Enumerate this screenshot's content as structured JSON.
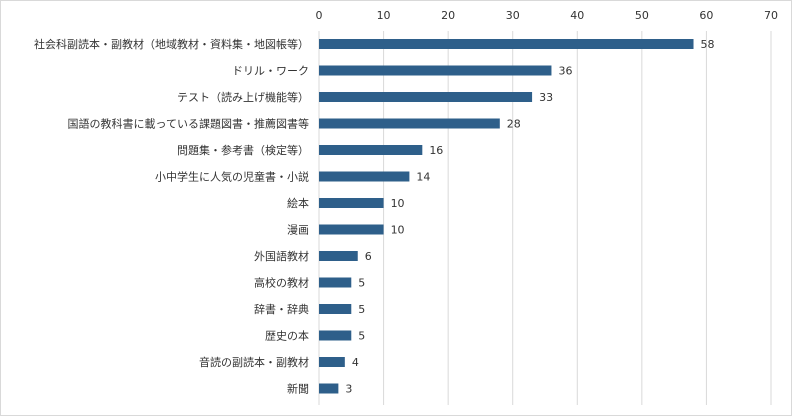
{
  "chart_data": {
    "type": "bar",
    "orientation": "horizontal",
    "title": "",
    "xlabel": "",
    "ylabel": "",
    "xlim": [
      0,
      70
    ],
    "x_ticks": [
      0,
      10,
      20,
      30,
      40,
      50,
      60,
      70
    ],
    "x_axis_position": "top",
    "grid": true,
    "legend": "none",
    "categories": [
      "社会科副読本・副教材（地域教材・資料集・地図帳等）",
      "ドリル・ワーク",
      "テスト（読み上げ機能等）",
      "国語の教科書に載っている課題図書・推薦図書等",
      "問題集・参考書（検定等）",
      "小中学生に人気の児童書・小説",
      "絵本",
      "漫画",
      "外国語教材",
      "高校の教材",
      "辞書・辞典",
      "歴史の本",
      "音読の副読本・副教材",
      "新聞"
    ],
    "values": [
      58,
      36,
      33,
      28,
      16,
      14,
      10,
      10,
      6,
      5,
      5,
      5,
      4,
      3
    ],
    "bar_color": "#2e5f8a",
    "grid_color": "#d9d9d9"
  }
}
